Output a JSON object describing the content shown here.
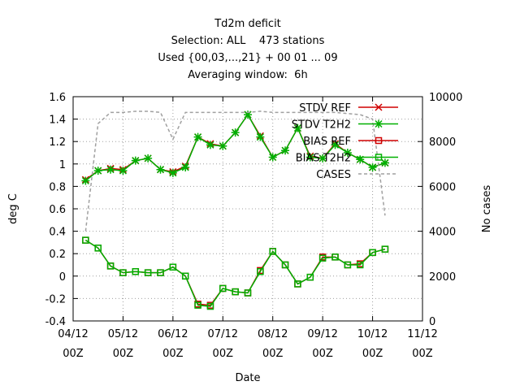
{
  "chart_data": {
    "type": "line",
    "title": "Td2m deficit",
    "subtitle": [
      "Selection: ALL    473 stations",
      "Used {00,03,...,21} + 00 01 ... 09",
      "Averaging window:  6h"
    ],
    "x_label": "Date",
    "y_label": "deg C",
    "y2_label": "No cases",
    "x": [
      "04/12 06Z",
      "04/12 12Z",
      "04/12 18Z",
      "05/12 00Z",
      "05/12 06Z",
      "05/12 12Z",
      "05/12 18Z",
      "06/12 00Z",
      "06/12 06Z",
      "06/12 12Z",
      "06/12 18Z",
      "07/12 00Z",
      "07/12 06Z",
      "07/12 12Z",
      "07/12 18Z",
      "08/12 00Z",
      "08/12 06Z",
      "08/12 12Z",
      "08/12 18Z",
      "09/12 00Z",
      "09/12 06Z",
      "09/12 12Z",
      "09/12 18Z",
      "10/12 00Z",
      "10/12 06Z"
    ],
    "xlim": [
      "04/12 00Z",
      "11/12 00Z"
    ],
    "xticks": [
      {
        "value": "04/12 00Z",
        "label": [
          "04/12",
          "00Z"
        ]
      },
      {
        "value": "05/12 00Z",
        "label": [
          "05/12",
          "00Z"
        ]
      },
      {
        "value": "06/12 00Z",
        "label": [
          "06/12",
          "00Z"
        ]
      },
      {
        "value": "07/12 00Z",
        "label": [
          "07/12",
          "00Z"
        ]
      },
      {
        "value": "08/12 00Z",
        "label": [
          "08/12",
          "00Z"
        ]
      },
      {
        "value": "09/12 00Z",
        "label": [
          "09/12",
          "00Z"
        ]
      },
      {
        "value": "10/12 00Z",
        "label": [
          "10/12",
          "00Z"
        ]
      },
      {
        "value": "11/12 00Z",
        "label": [
          "11/12",
          "00Z"
        ]
      }
    ],
    "ylim": [
      -0.4,
      1.6
    ],
    "yticks": [
      -0.4,
      -0.2,
      0,
      0.2,
      0.4,
      0.6,
      0.8,
      1,
      1.2,
      1.4,
      1.6
    ],
    "y2lim": [
      0,
      10000
    ],
    "y2ticks": [
      0,
      2000,
      4000,
      6000,
      8000,
      10000
    ],
    "grid": true,
    "legend": "top-right",
    "series": [
      {
        "name": "STDV REF",
        "color": "#d00000",
        "marker": "x",
        "values": [
          0.86,
          0.94,
          0.96,
          0.95,
          1.03,
          1.05,
          0.95,
          0.93,
          0.98,
          1.24,
          1.18,
          1.16,
          1.28,
          1.44,
          1.25,
          1.06,
          1.12,
          1.32,
          1.07,
          1.05,
          1.18,
          1.1,
          1.04,
          0.97,
          1.01
        ]
      },
      {
        "name": "STDV T2H2",
        "color": "#00b000",
        "marker": "star",
        "values": [
          0.85,
          0.94,
          0.95,
          0.94,
          1.03,
          1.05,
          0.95,
          0.92,
          0.97,
          1.24,
          1.17,
          1.16,
          1.28,
          1.44,
          1.24,
          1.06,
          1.12,
          1.32,
          1.06,
          1.05,
          1.17,
          1.1,
          1.04,
          0.97,
          1.01
        ]
      },
      {
        "name": "BIAS REF",
        "color": "#d00000",
        "marker": "square",
        "values": [
          0.32,
          0.25,
          0.09,
          0.03,
          0.04,
          0.03,
          0.03,
          0.08,
          0.0,
          -0.25,
          -0.26,
          -0.11,
          -0.14,
          -0.15,
          0.05,
          0.22,
          0.1,
          -0.07,
          -0.01,
          0.17,
          0.17,
          0.1,
          0.11,
          0.21,
          0.24
        ]
      },
      {
        "name": "BIAS T2H2",
        "color": "#00b000",
        "marker": "square",
        "values": [
          0.32,
          0.25,
          0.09,
          0.03,
          0.04,
          0.03,
          0.03,
          0.08,
          0.0,
          -0.26,
          -0.27,
          -0.11,
          -0.14,
          -0.15,
          0.04,
          0.22,
          0.1,
          -0.07,
          -0.01,
          0.16,
          0.17,
          0.1,
          0.1,
          0.21,
          0.24
        ]
      },
      {
        "name": "CASES",
        "color": "#a0a0a0",
        "marker": "none",
        "axis": "y2",
        "dash": true,
        "values": [
          4000,
          8800,
          9300,
          9300,
          9350,
          9350,
          9300,
          8100,
          9300,
          9300,
          9300,
          9300,
          9300,
          9300,
          9350,
          9300,
          9300,
          9300,
          9300,
          9300,
          9300,
          9250,
          9200,
          9000,
          4700
        ]
      }
    ]
  }
}
